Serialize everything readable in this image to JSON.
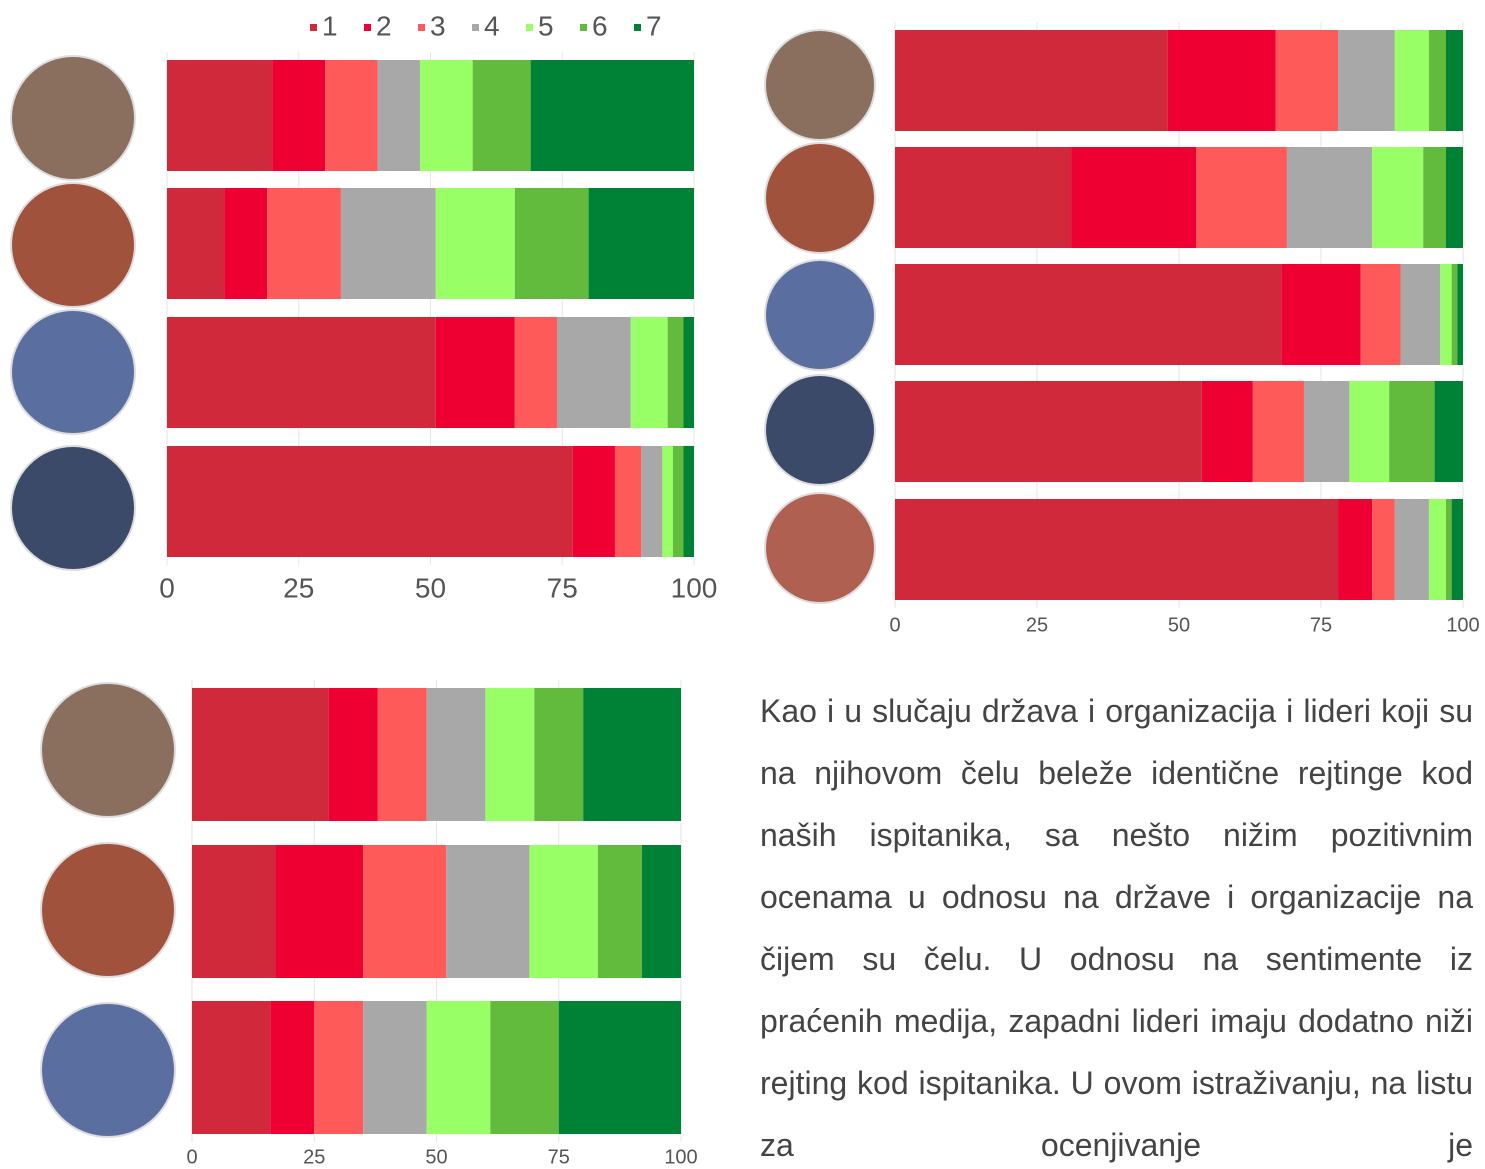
{
  "chart_data": [
    {
      "type": "bar",
      "orientation": "horizontal",
      "stacked": true,
      "legend": "top",
      "grid": true,
      "categories": [
        null,
        null,
        null,
        null
      ],
      "series": [
        {
          "name": "1",
          "color": "#d0293b",
          "values": [
            20,
            11,
            51,
            77
          ]
        },
        {
          "name": "2",
          "color": "#ee0033",
          "values": [
            10,
            8,
            15,
            8
          ]
        },
        {
          "name": "3",
          "color": "#ff5a5a",
          "values": [
            10,
            14,
            8,
            5
          ]
        },
        {
          "name": "4",
          "color": "#a8a8a8",
          "values": [
            8,
            18,
            14,
            4
          ]
        },
        {
          "name": "5",
          "color": "#99ff66",
          "values": [
            10,
            15,
            7,
            2
          ]
        },
        {
          "name": "6",
          "color": "#62bb3c",
          "values": [
            11,
            14,
            3,
            2
          ]
        },
        {
          "name": "7",
          "color": "#008236",
          "values": [
            31,
            20,
            2,
            2
          ]
        }
      ],
      "xlim": [
        0,
        100
      ],
      "xticks": [
        0,
        25,
        50,
        75,
        100
      ]
    },
    {
      "type": "bar",
      "orientation": "horizontal",
      "stacked": true,
      "grid": true,
      "categories": [
        null,
        null,
        null,
        null,
        null
      ],
      "series": [
        {
          "name": "1",
          "color": "#d0293b",
          "values": [
            48,
            31,
            68,
            54,
            78
          ]
        },
        {
          "name": "2",
          "color": "#ee0033",
          "values": [
            19,
            22,
            14,
            9,
            6
          ]
        },
        {
          "name": "3",
          "color": "#ff5a5a",
          "values": [
            11,
            16,
            7,
            9,
            4
          ]
        },
        {
          "name": "4",
          "color": "#a8a8a8",
          "values": [
            10,
            15,
            7,
            8,
            6
          ]
        },
        {
          "name": "5",
          "color": "#99ff66",
          "values": [
            6,
            9,
            2,
            7,
            3
          ]
        },
        {
          "name": "6",
          "color": "#62bb3c",
          "values": [
            3,
            4,
            1,
            8,
            1
          ]
        },
        {
          "name": "7",
          "color": "#008236",
          "values": [
            3,
            3,
            1,
            5,
            2
          ]
        }
      ],
      "xlim": [
        0,
        100
      ],
      "xticks": [
        0,
        25,
        50,
        75,
        100
      ]
    },
    {
      "type": "bar",
      "orientation": "horizontal",
      "stacked": true,
      "grid": true,
      "categories": [
        null,
        null,
        null
      ],
      "series": [
        {
          "name": "1",
          "color": "#d0293b",
          "values": [
            28,
            17,
            16
          ]
        },
        {
          "name": "2",
          "color": "#ee0033",
          "values": [
            10,
            18,
            9
          ]
        },
        {
          "name": "3",
          "color": "#ff5a5a",
          "values": [
            10,
            17,
            10
          ]
        },
        {
          "name": "4",
          "color": "#a8a8a8",
          "values": [
            12,
            17,
            13
          ]
        },
        {
          "name": "5",
          "color": "#99ff66",
          "values": [
            10,
            14,
            13
          ]
        },
        {
          "name": "6",
          "color": "#62bb3c",
          "values": [
            10,
            9,
            14
          ]
        },
        {
          "name": "7",
          "color": "#008236",
          "values": [
            20,
            8,
            25
          ]
        }
      ],
      "xlim": [
        0,
        100
      ],
      "xticks": [
        0,
        25,
        50,
        75,
        100
      ]
    }
  ],
  "paragraph": "Kao i u slučaju država i organizacija i lideri koji su na njihovom čelu beleže identične rejtinge kod naših ispitanika, sa nešto nižim pozitivnim ocenama u odnosu na države i organizacije na čijem su čelu. U odnosu na sentimente iz praćenih medija, zapadni lideri imaju dodatno niži rejting kod ispitanika. U ovom istraživanju, na listu za ocenjivanje je"
}
